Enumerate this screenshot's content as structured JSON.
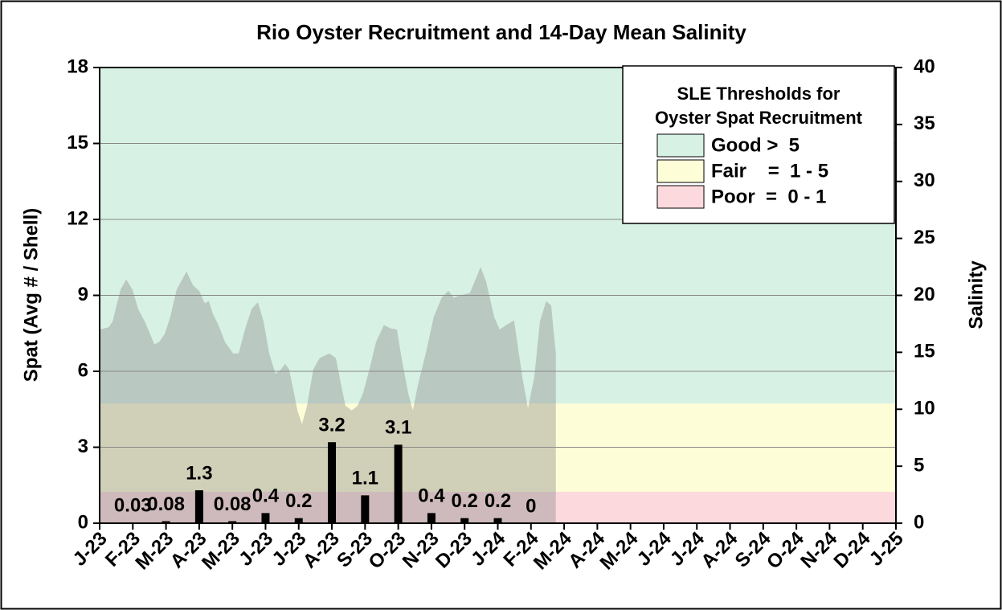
{
  "chart_data": {
    "type": "bar",
    "title": "Rio Oyster Recruitment and 14-Day Mean Salinity",
    "y_label": "Spat (Avg # / Shell)",
    "y2_label": "Salinity",
    "categories": [
      "J-23",
      "F-23",
      "M-23",
      "A-23",
      "M-23",
      "J-23",
      "J-23",
      "A-23",
      "S-23",
      "O-23",
      "N-23",
      "D-23",
      "J-24",
      "F-24",
      "M-24",
      "A-24",
      "M-24",
      "J-24",
      "J-24",
      "A-24",
      "S-24",
      "O-24",
      "N-24",
      "D-24",
      "J-25"
    ],
    "xlim": [
      0,
      24
    ],
    "ylim": [
      0,
      18
    ],
    "yticks": [
      0,
      3,
      6,
      9,
      12,
      15,
      18
    ],
    "y2lim": [
      0,
      40
    ],
    "y2ticks": [
      0,
      5,
      10,
      15,
      20,
      25,
      30,
      35,
      40
    ],
    "grid": true,
    "legend_title": "SLE Thresholds for Oyster Spat Recruitment",
    "bands": [
      {
        "name": "Good >  5",
        "color": "#d7f1e4",
        "from": 4.73,
        "to": 18
      },
      {
        "name": "Fair    =  1 - 5",
        "color": "#fdfdd8",
        "from": 1.24,
        "to": 4.73
      },
      {
        "name": "Poor  =  0 - 1",
        "color": "#fbd9dc",
        "from": 0,
        "to": 1.24
      }
    ],
    "series": [
      {
        "name": "Spat",
        "color": "#000000",
        "values": [
          null,
          0.03,
          0.08,
          1.3,
          0.08,
          0.4,
          0.2,
          3.2,
          1.1,
          3.1,
          0.4,
          0.2,
          0.2,
          0,
          null,
          null,
          null,
          null,
          null,
          null,
          null,
          null,
          null,
          null,
          null
        ]
      },
      {
        "name": "Salinity",
        "color": "#8c8c8c",
        "axis": "y2",
        "type": "area",
        "x": [
          0,
          0.27,
          0.39,
          0.63,
          0.8,
          0.99,
          1.16,
          1.36,
          1.48,
          1.65,
          1.79,
          1.96,
          2.13,
          2.32,
          2.62,
          2.81,
          3.0,
          3.17,
          3.29,
          3.41,
          3.58,
          3.78,
          4.02,
          4.19,
          4.38,
          4.58,
          4.77,
          4.94,
          5.11,
          5.3,
          5.47,
          5.59,
          5.71,
          5.86,
          5.96,
          6.1,
          6.25,
          6.44,
          6.63,
          6.92,
          7.12,
          7.26,
          7.41,
          7.6,
          7.77,
          7.94,
          8.14,
          8.33,
          8.57,
          8.77,
          8.96,
          9.1,
          9.3,
          9.44,
          9.59,
          9.83,
          10.07,
          10.31,
          10.51,
          10.68,
          10.85,
          11.16,
          11.4,
          11.48,
          11.65,
          11.89,
          12.06,
          12.25,
          12.49,
          12.62,
          12.74,
          12.91,
          13.1,
          13.27,
          13.46,
          13.61,
          13.7,
          13.75
        ],
        "values": [
          17.0,
          17.2,
          17.7,
          20.5,
          21.4,
          20.5,
          18.8,
          17.7,
          16.9,
          15.7,
          15.9,
          16.6,
          18.1,
          20.5,
          22.1,
          20.9,
          20.4,
          19.3,
          19.5,
          18.4,
          17.4,
          15.9,
          14.9,
          14.9,
          17.0,
          18.8,
          19.4,
          17.7,
          14.9,
          13.1,
          13.5,
          14.0,
          13.5,
          11.4,
          9.9,
          8.7,
          10.3,
          13.5,
          14.5,
          14.9,
          14.5,
          12.4,
          10.3,
          9.9,
          10.3,
          11.4,
          13.6,
          15.9,
          17.4,
          17.1,
          17.0,
          14.5,
          11.4,
          9.9,
          12.1,
          14.9,
          18.1,
          19.8,
          20.4,
          19.8,
          20.0,
          20.2,
          21.9,
          22.5,
          21.2,
          18.1,
          17.0,
          17.4,
          17.8,
          15.2,
          12.8,
          10.1,
          12.8,
          17.7,
          19.5,
          19.1,
          16.3,
          14.9
        ]
      }
    ]
  }
}
